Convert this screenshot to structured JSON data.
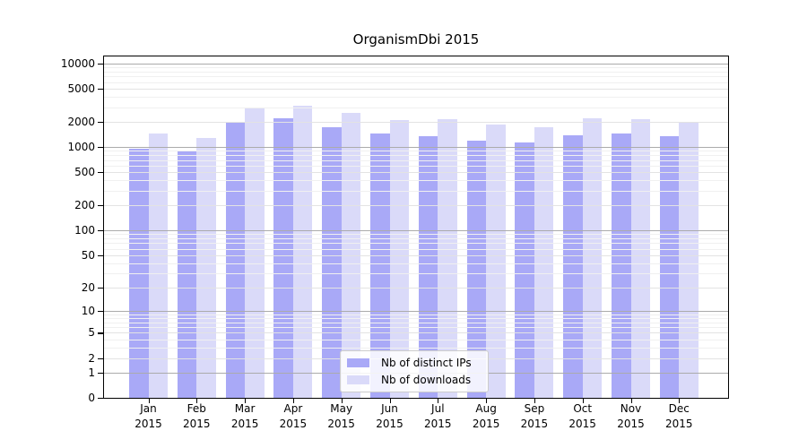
{
  "chart_data": {
    "type": "bar",
    "title": "OrganismDbi 2015",
    "months": [
      "Jan",
      "Feb",
      "Mar",
      "Apr",
      "May",
      "Jun",
      "Jul",
      "Aug",
      "Sep",
      "Oct",
      "Nov",
      "Dec"
    ],
    "year_label": "2015",
    "yscale": "log10(value+1)",
    "ylim": [
      0,
      10000
    ],
    "yticks": [
      10000,
      5000,
      2000,
      1000,
      500,
      200,
      100,
      50,
      20,
      10,
      5,
      2,
      1,
      0
    ],
    "strong_gridline_values": [
      1,
      10,
      100,
      1000,
      10000
    ],
    "minor_gridline_multipliers": [
      3,
      4,
      6,
      7,
      8,
      9
    ],
    "grid": {
      "strong": "#ababab",
      "medium": "#e3e3e3",
      "faint": "#f0f0f0",
      "axis": "#000000",
      "background": "#ffffff"
    },
    "legend_position": "bottom-center",
    "series": [
      {
        "name": "Nb of distinct IPs",
        "color": "#a9a9f7",
        "values": [
          950,
          900,
          2000,
          2200,
          1750,
          1450,
          1350,
          1200,
          1150,
          1400,
          1450,
          1350
        ]
      },
      {
        "name": "Nb of downloads",
        "color": "#dadaf9",
        "values": [
          1450,
          1300,
          2900,
          3100,
          2600,
          2100,
          2150,
          1850,
          1750,
          2200,
          2150,
          2000
        ]
      }
    ]
  }
}
